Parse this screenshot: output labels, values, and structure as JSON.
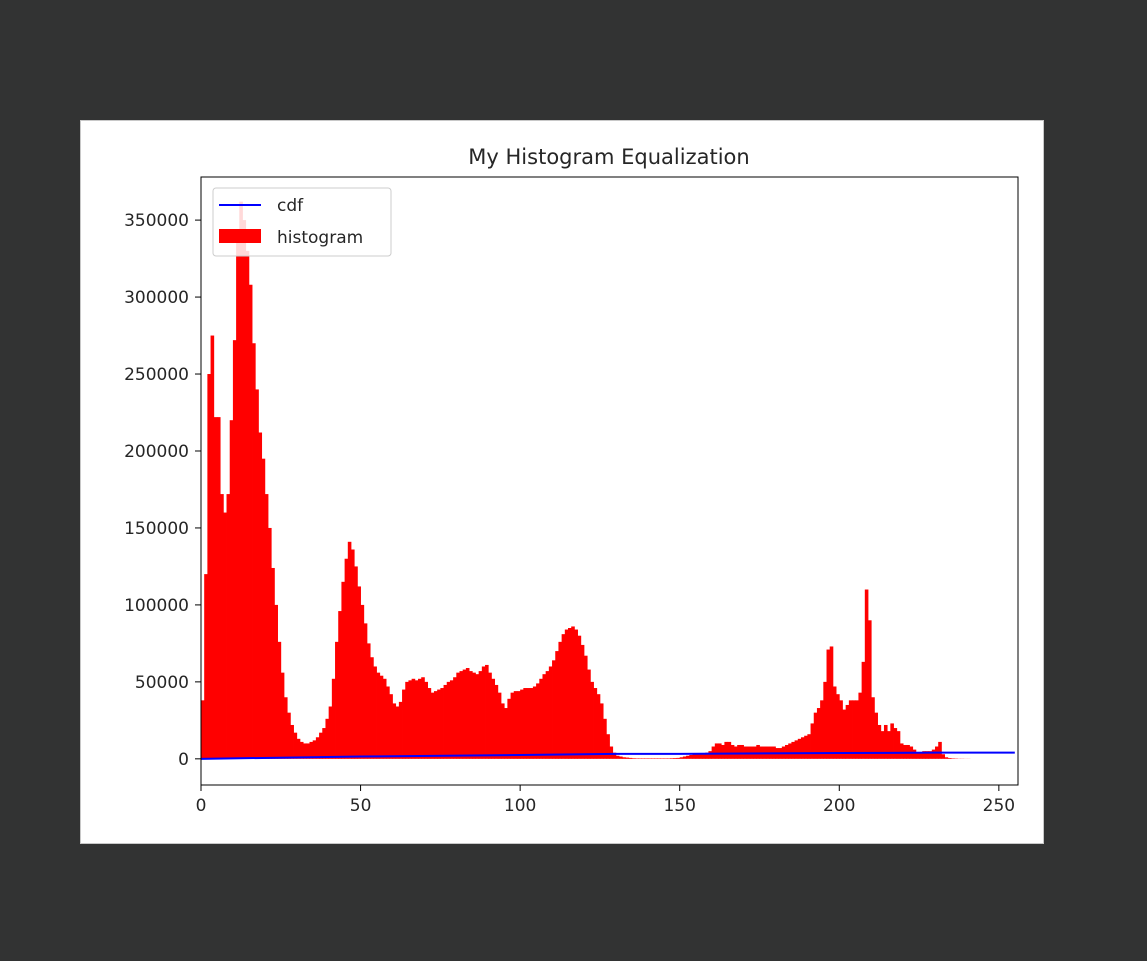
{
  "chart_data": {
    "type": "bar",
    "title": "My Histogram Equalization",
    "xlabel": "",
    "ylabel": "",
    "xlim": [
      0,
      256
    ],
    "ylim": [
      -17000,
      378000
    ],
    "x_ticks": [
      0,
      50,
      100,
      150,
      200,
      250
    ],
    "y_ticks": [
      0,
      50000,
      100000,
      150000,
      200000,
      250000,
      300000,
      350000
    ],
    "x_tick_labels": [
      "0",
      "50",
      "100",
      "150",
      "200",
      "250"
    ],
    "y_tick_labels": [
      "0",
      "50000",
      "100000",
      "150000",
      "200000",
      "250000",
      "300000",
      "350000"
    ],
    "legend_position": "upper-left",
    "grid": false,
    "series": [
      {
        "name": "histogram",
        "kind": "bar",
        "color": "#ff0000",
        "bin_width": 1,
        "values": [
          38000,
          120000,
          250000,
          275000,
          222000,
          222000,
          172000,
          160000,
          172000,
          220000,
          272000,
          340000,
          362000,
          350000,
          330000,
          308000,
          270000,
          240000,
          212000,
          195000,
          172000,
          150000,
          124000,
          100000,
          76000,
          56000,
          40000,
          30000,
          22000,
          17000,
          13000,
          11000,
          10000,
          10000,
          11000,
          12000,
          14000,
          17000,
          20000,
          26000,
          34000,
          52000,
          76000,
          96000,
          115000,
          130000,
          141000,
          136000,
          125000,
          112000,
          100000,
          88000,
          75000,
          66000,
          60000,
          56000,
          54000,
          52000,
          47000,
          42000,
          36000,
          34000,
          37000,
          45000,
          50000,
          51000,
          52000,
          51000,
          52000,
          53000,
          50000,
          46000,
          43000,
          44000,
          45000,
          46000,
          48000,
          50000,
          51000,
          53000,
          56000,
          57000,
          58000,
          59000,
          57000,
          56000,
          55000,
          57000,
          60000,
          61000,
          56000,
          52000,
          48000,
          43000,
          36000,
          33000,
          39000,
          43000,
          44000,
          44000,
          45000,
          46000,
          46000,
          46000,
          47000,
          49000,
          52000,
          55000,
          57000,
          60000,
          64000,
          70000,
          76000,
          81000,
          84000,
          85000,
          86000,
          84000,
          80000,
          74000,
          67000,
          58000,
          50000,
          46000,
          42000,
          36000,
          26000,
          16000,
          8000,
          4000,
          2000,
          1500,
          1000,
          800,
          600,
          400,
          300,
          300,
          300,
          300,
          300,
          300,
          300,
          300,
          300,
          300,
          300,
          400,
          500,
          600,
          1000,
          1500,
          2000,
          2500,
          3000,
          3000,
          3000,
          3500,
          4000,
          5000,
          8000,
          10000,
          10000,
          9000,
          11000,
          11000,
          9000,
          8000,
          9000,
          9000,
          8000,
          8000,
          8000,
          8000,
          9000,
          8000,
          8000,
          8000,
          8000,
          8000,
          7000,
          7000,
          8000,
          9000,
          10000,
          11000,
          12000,
          13000,
          14000,
          15000,
          16000,
          23000,
          30000,
          33000,
          38000,
          50000,
          71000,
          73000,
          47000,
          42000,
          38000,
          32000,
          35000,
          38000,
          38000,
          38000,
          43000,
          63000,
          110000,
          90000,
          40000,
          30000,
          22000,
          18000,
          22000,
          18000,
          23000,
          20000,
          18000,
          10000,
          9000,
          9000,
          8000,
          6000,
          4000,
          3500,
          5000,
          5000,
          5000,
          6000,
          8000,
          11000,
          3000,
          1000,
          500,
          300,
          200,
          100,
          100,
          50,
          50,
          0,
          0,
          0,
          0,
          0,
          0,
          0,
          0,
          0,
          0,
          0,
          0,
          0,
          0,
          0
        ]
      },
      {
        "name": "cdf",
        "kind": "line",
        "color": "#0000ff",
        "description": "normalized cumulative distribution; plotted near zero on this scale",
        "x": [
          0,
          50,
          100,
          130,
          150,
          200,
          230,
          255
        ],
        "y": [
          0,
          1500,
          2500,
          3200,
          3250,
          3800,
          4000,
          4000
        ]
      }
    ]
  }
}
